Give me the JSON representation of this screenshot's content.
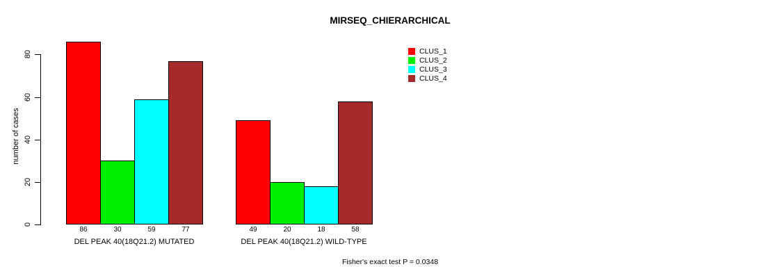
{
  "title": "MIRSEQ_CHIERARCHICAL",
  "ylabel": "number of cases",
  "footnote": "Fisher's exact test P = 0.0348",
  "chart_data": {
    "type": "bar",
    "title": "MIRSEQ_CHIERARCHICAL",
    "xlabel": "",
    "ylabel": "number of cases",
    "ylim": [
      0,
      86
    ],
    "yticks": [
      0,
      20,
      40,
      60,
      80
    ],
    "grid": false,
    "legend_position": "top-right-outside",
    "categories": [
      "DEL PEAK 40(18Q21.2) MUTATED",
      "DEL PEAK 40(18Q21.2) WILD-TYPE"
    ],
    "series": [
      {
        "name": "CLUS_1",
        "color": "#FF0000",
        "values": [
          86,
          49
        ]
      },
      {
        "name": "CLUS_2",
        "color": "#00EE00",
        "values": [
          30,
          20
        ]
      },
      {
        "name": "CLUS_3",
        "color": "#00FFFF",
        "values": [
          59,
          18
        ]
      },
      {
        "name": "CLUS_4",
        "color": "#A52A2A",
        "values": [
          77,
          58
        ]
      }
    ],
    "bar_value_labels": [
      [
        86,
        30,
        59,
        77
      ],
      [
        49,
        20,
        18,
        58
      ]
    ],
    "annotation": "Fisher's exact test P = 0.0348"
  }
}
